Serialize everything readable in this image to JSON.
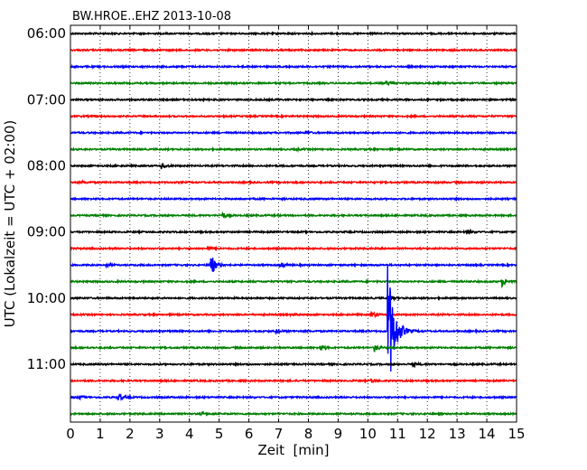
{
  "chart_data": {
    "type": "line",
    "title": "BW.HROE..EHZ 2013-10-08",
    "xlabel": "Zeit  [min]",
    "ylabel": "UTC (Lokalzeit = UTC + 02:00)",
    "xlim": [
      0,
      15
    ],
    "x_ticks": [
      "0",
      "1",
      "2",
      "3",
      "4",
      "5",
      "6",
      "7",
      "8",
      "9",
      "10",
      "11",
      "12",
      "13",
      "14",
      "15"
    ],
    "y_tick_labels": [
      "06:00",
      "07:00",
      "08:00",
      "09:00",
      "10:00",
      "11:00"
    ],
    "grid": true,
    "colors": [
      "#000000",
      "#ff0000",
      "#0000ff",
      "#008000"
    ],
    "traces": [
      {
        "start": "06:00",
        "color": "#000000",
        "events": []
      },
      {
        "start": "06:15",
        "color": "#ff0000",
        "events": []
      },
      {
        "start": "06:30",
        "color": "#0000ff",
        "events": []
      },
      {
        "start": "06:45",
        "color": "#008000",
        "events": [
          {
            "t": 10.6,
            "amp": 0.25
          }
        ]
      },
      {
        "start": "07:00",
        "color": "#000000",
        "events": []
      },
      {
        "start": "07:15",
        "color": "#ff0000",
        "events": []
      },
      {
        "start": "07:30",
        "color": "#0000ff",
        "events": [
          {
            "t": 7.9,
            "amp": 0.2
          }
        ]
      },
      {
        "start": "07:45",
        "color": "#008000",
        "events": [
          {
            "t": 7.6,
            "amp": 0.15
          }
        ]
      },
      {
        "start": "08:00",
        "color": "#000000",
        "events": [
          {
            "t": 3.05,
            "amp": 0.4
          }
        ]
      },
      {
        "start": "08:15",
        "color": "#ff0000",
        "events": [
          {
            "t": 0.4,
            "amp": 0.15
          }
        ]
      },
      {
        "start": "08:30",
        "color": "#0000ff",
        "events": []
      },
      {
        "start": "08:45",
        "color": "#008000",
        "events": [
          {
            "t": 5.1,
            "amp": 0.4
          }
        ]
      },
      {
        "start": "09:00",
        "color": "#000000",
        "events": [
          {
            "t": 13.3,
            "amp": 0.2
          }
        ]
      },
      {
        "start": "09:15",
        "color": "#ff0000",
        "events": [
          {
            "t": 4.6,
            "amp": 0.2
          }
        ]
      },
      {
        "start": "09:30",
        "color": "#0000ff",
        "events": [
          {
            "t": 4.7,
            "amp": 1.8
          },
          {
            "t": 7.05,
            "amp": 0.35
          },
          {
            "t": 1.2,
            "amp": 0.2
          }
        ]
      },
      {
        "start": "09:45",
        "color": "#008000",
        "events": [
          {
            "t": 14.5,
            "amp": 0.6
          }
        ]
      },
      {
        "start": "10:00",
        "color": "#000000",
        "events": [
          {
            "t": 10.7,
            "amp": 0.4
          }
        ]
      },
      {
        "start": "10:15",
        "color": "#ff0000",
        "events": [
          {
            "t": 10.1,
            "amp": 0.4
          },
          {
            "t": 7.4,
            "amp": 0.15
          }
        ]
      },
      {
        "start": "10:30",
        "color": "#0000ff",
        "events": [
          {
            "t": 10.65,
            "amp": 10.0
          },
          {
            "t": 6.9,
            "amp": 0.2
          }
        ]
      },
      {
        "start": "10:45",
        "color": "#008000",
        "events": [
          {
            "t": 10.2,
            "amp": 0.5
          },
          {
            "t": 8.4,
            "amp": 0.4
          }
        ]
      },
      {
        "start": "11:00",
        "color": "#000000",
        "events": [
          {
            "t": 11.5,
            "amp": 0.25
          }
        ]
      },
      {
        "start": "11:15",
        "color": "#ff0000",
        "events": [
          {
            "t": 10.1,
            "amp": 0.25
          }
        ]
      },
      {
        "start": "11:30",
        "color": "#0000ff",
        "events": [
          {
            "t": 1.6,
            "amp": 0.55
          },
          {
            "t": 0.3,
            "amp": 0.2
          }
        ]
      },
      {
        "start": "11:45",
        "color": "#008000",
        "events": [
          {
            "t": 4.4,
            "amp": 0.2
          }
        ]
      }
    ]
  }
}
